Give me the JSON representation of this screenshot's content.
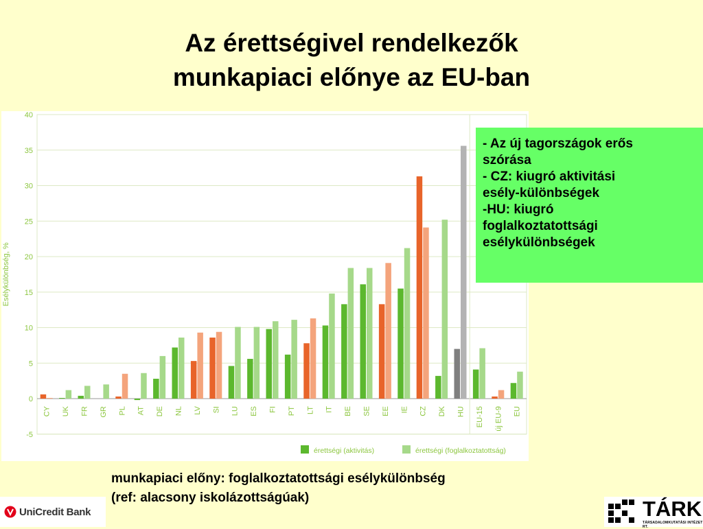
{
  "title": {
    "line1": "Az érettségivel rendelkezők",
    "line2": "munkapiaci előnye az EU-ban"
  },
  "note": {
    "line1": "- Az új tagországok erős",
    "line2": "szórása",
    "line3": "- CZ: kiugró aktivitási",
    "line4": "esély-különbségek",
    "line5": "-HU: kiugró",
    "line6": "foglalkoztatottsági",
    "line7": "esélykülönbségek"
  },
  "caption": {
    "line1": "munkapiaci előny: foglalkoztatottsági esélykülönbség",
    "line2": "(ref: alacsony iskolázottságúak)"
  },
  "logos": {
    "unicredit": "UniCredit Bank",
    "tarki": "TÁRKI",
    "tarki_sub": "TÁRSADALOMKUTATÁSI INTÉZET RT."
  },
  "colors": {
    "green_dark": "#5cb82e",
    "green_light": "#a6d98a",
    "orange_dark": "#e8642a",
    "orange_light": "#f4a47c",
    "gray_dark": "#7f7f7f",
    "gray_light": "#b3b3b3",
    "axis_text": "#8cc63f",
    "grid": "#dde9c4"
  },
  "chart_data": {
    "type": "bar",
    "ylabel": "Esélykülönbség, %",
    "ylim": [
      -5,
      40
    ],
    "yticks": [
      -5,
      0,
      5,
      10,
      15,
      20,
      25,
      30,
      35,
      40
    ],
    "grid": true,
    "legend_position": "bottom-right",
    "categories": [
      "CY",
      "UK",
      "FR",
      "GR",
      "PL",
      "AT",
      "DE",
      "NL",
      "LV",
      "SI",
      "LU",
      "ES",
      "FI",
      "PT",
      "LT",
      "IT",
      "BE",
      "SE",
      "EE",
      "IE",
      "CZ",
      "DK",
      "HU",
      "EU-15",
      "új EU-9",
      "EU"
    ],
    "highlight": [
      "orange",
      "green",
      "green",
      "green",
      "orange",
      "green",
      "green",
      "green",
      "orange",
      "orange",
      "green",
      "green",
      "green",
      "green",
      "orange",
      "green",
      "green",
      "green",
      "orange",
      "green",
      "orange",
      "green",
      "gray",
      "green",
      "orange",
      "green"
    ],
    "series": [
      {
        "name": "érettségi (aktivitás)",
        "values": [
          0.6,
          0.1,
          0.4,
          0,
          0.3,
          -0.2,
          2.8,
          7.2,
          5.3,
          8.6,
          4.6,
          5.6,
          9.8,
          6.2,
          7.8,
          10.3,
          13.3,
          16.1,
          13.3,
          15.5,
          31.3,
          3.2,
          7.0,
          4.1,
          0.3,
          2.2
        ]
      },
      {
        "name": "érettségi (foglalkoztatottság)",
        "values": [
          0.1,
          1.2,
          1.8,
          2.0,
          3.5,
          3.6,
          6.0,
          8.6,
          9.3,
          9.4,
          10.1,
          10.1,
          10.9,
          11.1,
          11.3,
          14.8,
          18.4,
          18.4,
          19.1,
          21.2,
          24.1,
          25.2,
          35.6,
          7.1,
          1.2,
          3.8
        ]
      }
    ]
  }
}
